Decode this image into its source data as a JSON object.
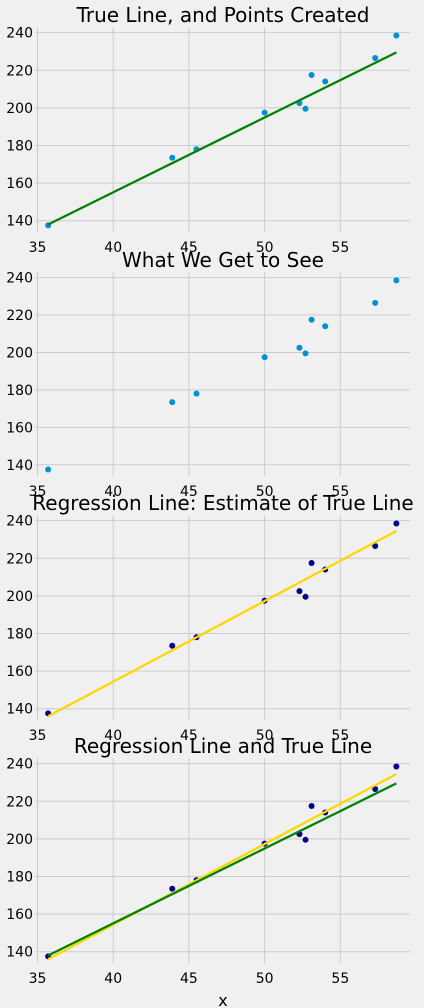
{
  "colors": {
    "background": "#f0f0f0",
    "grid": "#cbcbcb",
    "points_light": "#008fd5",
    "points_dark": "#00008b",
    "true_line": "#008000",
    "regression_line": "#ffd700"
  },
  "chart_data": [
    {
      "type": "scatter",
      "title": "True Line, and Points Created",
      "xlabel": "",
      "ylabel": "",
      "xlim": [
        34.9,
        59.6
      ],
      "ylim": [
        134,
        243
      ],
      "xticks": [
        35,
        40,
        45,
        50,
        55
      ],
      "yticks": [
        140,
        160,
        180,
        200,
        220,
        240
      ],
      "grid": true,
      "points": {
        "color": "light",
        "x": [
          35.7,
          43.9,
          45.5,
          50.0,
          52.3,
          52.7,
          53.1,
          54.0,
          57.3,
          58.7
        ],
        "y": [
          137.5,
          173.5,
          178.0,
          197.5,
          202.5,
          199.5,
          217.5,
          214.0,
          226.5,
          238.5
        ]
      },
      "lines": [
        {
          "kind": "true",
          "x": [
            35.7,
            58.7
          ],
          "y": [
            138.0,
            229.5
          ]
        }
      ]
    },
    {
      "type": "scatter",
      "title": "What We Get to See",
      "xlabel": "",
      "ylabel": "",
      "xlim": [
        34.9,
        59.6
      ],
      "ylim": [
        134,
        243
      ],
      "xticks": [
        35,
        40,
        45,
        50,
        55
      ],
      "yticks": [
        140,
        160,
        180,
        200,
        220,
        240
      ],
      "grid": true,
      "points": {
        "color": "light",
        "x": [
          35.7,
          43.9,
          45.5,
          50.0,
          52.3,
          52.7,
          53.1,
          54.0,
          57.3,
          58.7
        ],
        "y": [
          137.5,
          173.5,
          178.0,
          197.5,
          202.5,
          199.5,
          217.5,
          214.0,
          226.5,
          238.5
        ]
      },
      "lines": []
    },
    {
      "type": "scatter",
      "title": "Regression Line: Estimate of True Line",
      "xlabel": "",
      "ylabel": "",
      "xlim": [
        34.9,
        59.6
      ],
      "ylim": [
        134,
        243
      ],
      "xticks": [
        35,
        40,
        45,
        50,
        55
      ],
      "yticks": [
        140,
        160,
        180,
        200,
        220,
        240
      ],
      "grid": true,
      "points": {
        "color": "dark",
        "x": [
          35.7,
          43.9,
          45.5,
          50.0,
          52.3,
          52.7,
          53.1,
          54.0,
          57.3,
          58.7
        ],
        "y": [
          137.5,
          173.5,
          178.0,
          197.5,
          202.5,
          199.5,
          217.5,
          214.0,
          226.5,
          238.5
        ]
      },
      "lines": [
        {
          "kind": "regression",
          "x": [
            35.7,
            58.7
          ],
          "y": [
            136.0,
            234.5
          ]
        }
      ]
    },
    {
      "type": "scatter",
      "title": "Regression Line and True Line",
      "xlabel": "x",
      "ylabel": "",
      "xlim": [
        34.9,
        59.6
      ],
      "ylim": [
        134,
        243
      ],
      "xticks": [
        35,
        40,
        45,
        50,
        55
      ],
      "yticks": [
        140,
        160,
        180,
        200,
        220,
        240
      ],
      "grid": true,
      "points": {
        "color": "dark",
        "x": [
          35.7,
          43.9,
          45.5,
          50.0,
          52.3,
          52.7,
          53.1,
          54.0,
          57.3,
          58.7
        ],
        "y": [
          137.5,
          173.5,
          178.0,
          197.5,
          202.5,
          199.5,
          217.5,
          214.0,
          226.5,
          238.5
        ]
      },
      "lines": [
        {
          "kind": "regression",
          "x": [
            35.7,
            58.7
          ],
          "y": [
            136.0,
            234.5
          ]
        },
        {
          "kind": "true",
          "x": [
            35.7,
            58.7
          ],
          "y": [
            138.0,
            229.5
          ]
        }
      ]
    }
  ]
}
